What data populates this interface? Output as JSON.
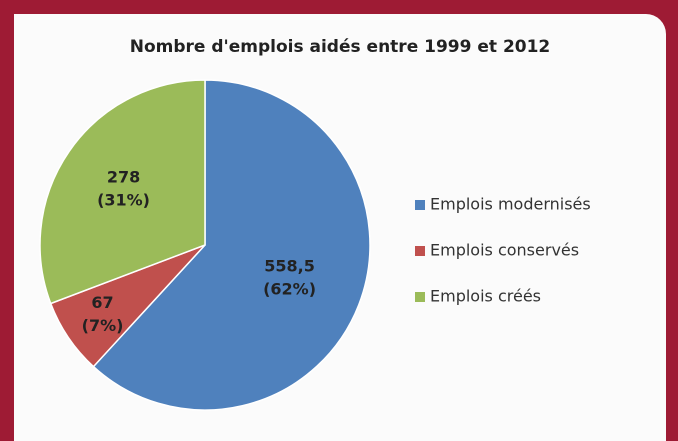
{
  "chart_data": {
    "type": "pie",
    "title": "Nombre d'emplois aidés entre 1999 et 2012",
    "categories": [
      "Emplois modernisés",
      "Emplois conservés",
      "Emplois créés"
    ],
    "values": [
      558.5,
      67,
      278
    ],
    "value_labels": [
      "558,5",
      "67",
      "278"
    ],
    "percent_labels": [
      "(62%)",
      "(7%)",
      "(31%)"
    ],
    "colors": [
      "#4f81bd",
      "#c0504d",
      "#9bbb59"
    ],
    "legend": "right"
  }
}
